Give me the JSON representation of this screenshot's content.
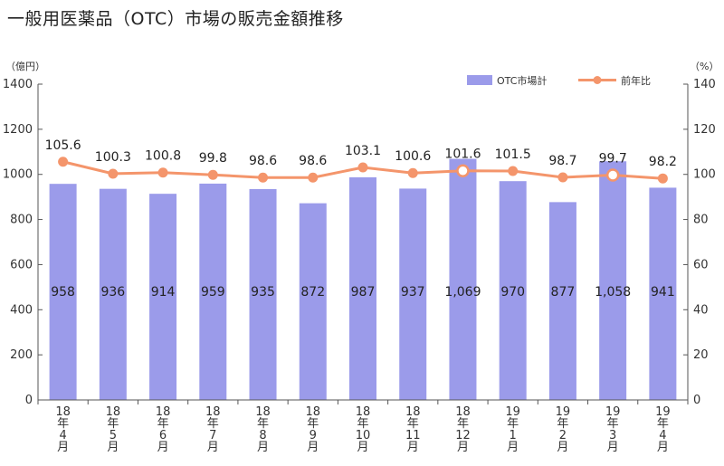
{
  "title": "一般用医薬品（OTC）市場の販売金額推移",
  "chart_data": {
    "type": "bar+line",
    "categories": [
      [
        "18",
        "年",
        "4",
        "月"
      ],
      [
        "18",
        "年",
        "5",
        "月"
      ],
      [
        "18",
        "年",
        "6",
        "月"
      ],
      [
        "18",
        "年",
        "7",
        "月"
      ],
      [
        "18",
        "年",
        "8",
        "月"
      ],
      [
        "18",
        "年",
        "9",
        "月"
      ],
      [
        "18",
        "年",
        "10",
        "月"
      ],
      [
        "18",
        "年",
        "11",
        "月"
      ],
      [
        "18",
        "年",
        "12",
        "月"
      ],
      [
        "19",
        "年",
        "1",
        "月"
      ],
      [
        "19",
        "年",
        "2",
        "月"
      ],
      [
        "19",
        "年",
        "3",
        "月"
      ],
      [
        "19",
        "年",
        "4",
        "月"
      ]
    ],
    "bar_series": {
      "name": "OTC市場計",
      "values": [
        958,
        936,
        914,
        959,
        935,
        872,
        987,
        937,
        1069,
        970,
        877,
        1058,
        941
      ],
      "labels": [
        "958",
        "936",
        "914",
        "959",
        "935",
        "872",
        "987",
        "937",
        "1,069",
        "970",
        "877",
        "1,058",
        "941"
      ],
      "color": "#9b9bea"
    },
    "line_series": {
      "name": "前年比",
      "values": [
        105.6,
        100.3,
        100.8,
        99.8,
        98.6,
        98.6,
        103.1,
        100.6,
        101.6,
        101.5,
        98.7,
        99.7,
        98.2
      ],
      "labels": [
        "105.6",
        "100.3",
        "100.8",
        "99.8",
        "98.6",
        "98.6",
        "103.1",
        "100.6",
        "101.6",
        "101.5",
        "98.7",
        "99.7",
        "98.2"
      ],
      "color": "#f4956b",
      "hollow_points": [
        8,
        11
      ]
    },
    "y_left": {
      "unit": "（億円）",
      "min": 0,
      "max": 1400,
      "ticks": [
        "0",
        "200",
        "400",
        "600",
        "800",
        "1000",
        "1200",
        "1400"
      ]
    },
    "y_right": {
      "unit": "（%）",
      "min": 0,
      "max": 140,
      "ticks": [
        "0",
        "20",
        "40",
        "60",
        "80",
        "100",
        "120",
        "140"
      ]
    },
    "legend_position": "top-right",
    "grid": false
  }
}
